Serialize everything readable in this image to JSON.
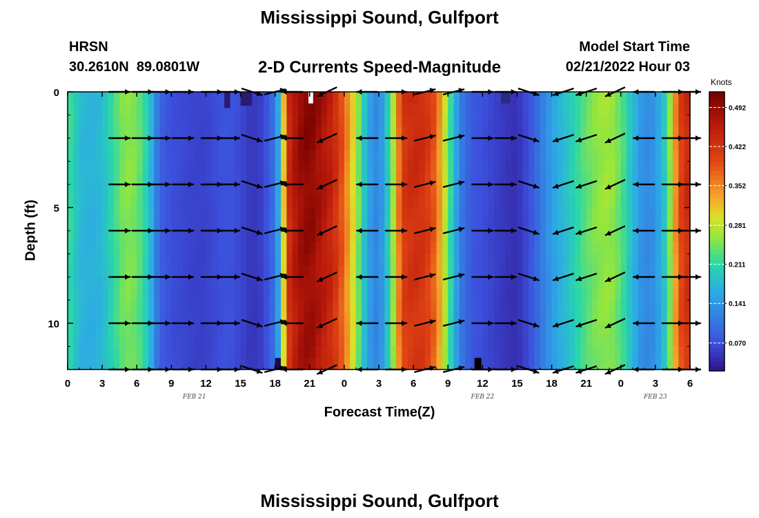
{
  "title": "Mississippi Sound, Gulfport",
  "station": {
    "name": "HRSN",
    "coords": "30.2610N  89.0801W"
  },
  "model": {
    "label": "Model Start Time",
    "start": "02/21/2022 Hour 03"
  },
  "second_title": "Mississippi Sound, Gulfport",
  "chart_data": {
    "type": "heatmap",
    "title": "2-D Currents Speed-Magnitude",
    "xlabel": "Forecast Time(Z)",
    "ylabel": "Depth (ft)",
    "x_range_hours": [
      0,
      54
    ],
    "x_ticks": [
      "0",
      "3",
      "6",
      "9",
      "12",
      "15",
      "18",
      "21",
      "0",
      "3",
      "6",
      "9",
      "12",
      "15",
      "18",
      "21",
      "0",
      "3",
      "6"
    ],
    "x_date_labels": [
      {
        "label": "FEB 21",
        "hour": 11
      },
      {
        "label": "FEB 22",
        "hour": 36
      },
      {
        "label": "FEB 23",
        "hour": 51
      }
    ],
    "y_range_ft": [
      0,
      12
    ],
    "y_ticks": [
      "0",
      "5",
      "10"
    ],
    "y_inverted": true,
    "colorbar": {
      "unit": "Knots",
      "ticks": [
        "0.492",
        "0.422",
        "0.352",
        "0.281",
        "0.211",
        "0.141",
        "0.070"
      ],
      "range": [
        0.02,
        0.52
      ],
      "colormap": "jet"
    },
    "speed_profile": {
      "hours": [
        0,
        1,
        2,
        3,
        4,
        5,
        6,
        7,
        7.5,
        8,
        9,
        10,
        11,
        12,
        13,
        14,
        15,
        16,
        17,
        18,
        18.5,
        19,
        20,
        21,
        22,
        23,
        24,
        25,
        26,
        27,
        28,
        29,
        30,
        31,
        32,
        33,
        34,
        35,
        36,
        37,
        38,
        39,
        40,
        41,
        42,
        43,
        44,
        45,
        46,
        47,
        48,
        49,
        50,
        51,
        52,
        53,
        54
      ],
      "speed": [
        0.23,
        0.18,
        0.17,
        0.18,
        0.22,
        0.26,
        0.25,
        0.2,
        0.14,
        0.09,
        0.07,
        0.065,
        0.06,
        0.06,
        0.07,
        0.075,
        0.065,
        0.05,
        0.06,
        0.11,
        0.2,
        0.43,
        0.49,
        0.51,
        0.48,
        0.45,
        0.38,
        0.28,
        0.16,
        0.12,
        0.22,
        0.42,
        0.44,
        0.43,
        0.38,
        0.25,
        0.12,
        0.08,
        0.07,
        0.06,
        0.05,
        0.045,
        0.07,
        0.11,
        0.15,
        0.18,
        0.21,
        0.24,
        0.26,
        0.27,
        0.24,
        0.18,
        0.13,
        0.14,
        0.21,
        0.4,
        0.45
      ]
    },
    "vectors": {
      "hours": [
        4.5,
        6.5,
        8,
        10,
        12.5,
        14,
        16,
        18,
        19.5,
        22.5,
        26,
        28.5,
        31,
        33.5,
        36,
        38,
        40,
        43,
        45,
        47.5,
        50,
        52.5,
        54
      ],
      "depths_ft": [
        0,
        2,
        4,
        6,
        8,
        10,
        12
      ],
      "direction": [
        "E",
        "E",
        "E",
        "E",
        "E",
        "E",
        "SE",
        "NE",
        "W",
        "SW",
        "W",
        "E",
        "NE",
        "NE",
        "E",
        "E",
        "SE",
        "WSW",
        "WSW",
        "SW",
        "W",
        "E",
        "E"
      ]
    }
  }
}
